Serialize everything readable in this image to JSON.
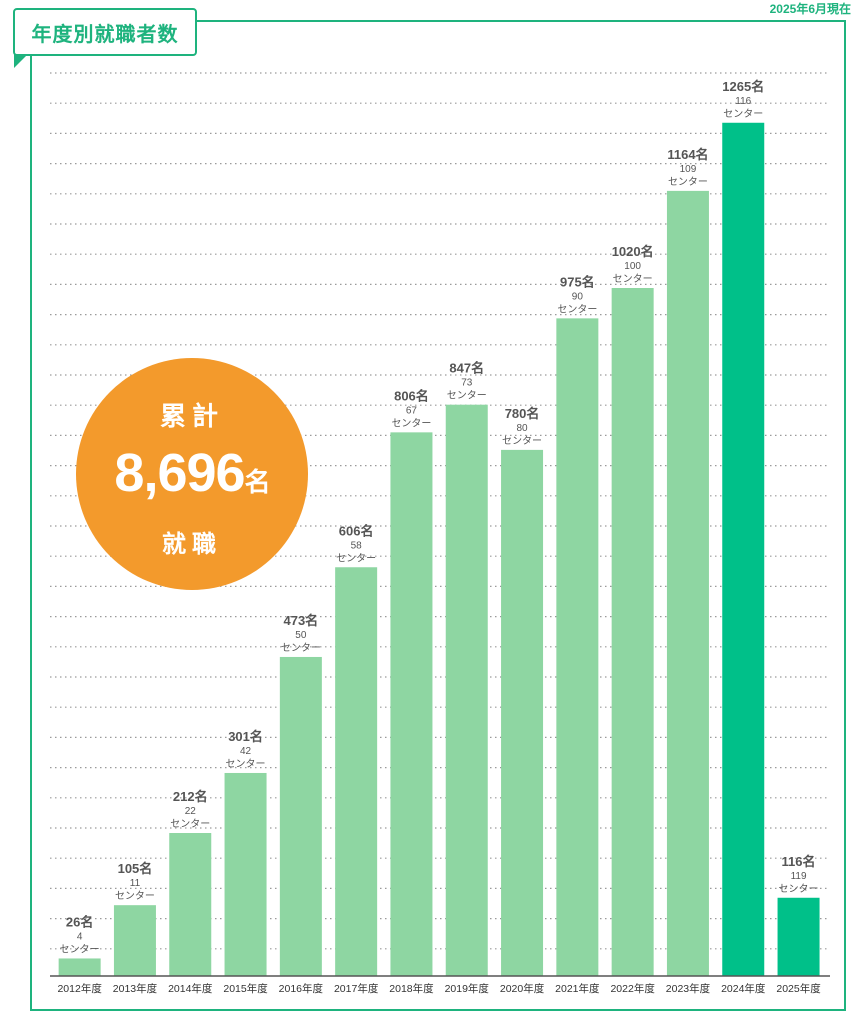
{
  "header": {
    "title": "年度別就職者数",
    "as_of": "2025年6月現在"
  },
  "badge": {
    "line1": "累計",
    "total": "8,696",
    "unit": "名",
    "line3": "就職"
  },
  "colors": {
    "frame": "#1eb37e",
    "bar_normal": "#8ed6a2",
    "bar_highlight": "#00c089",
    "badge": "#f39a2c"
  },
  "chart_data": {
    "type": "bar",
    "categories": [
      "2012年度",
      "2013年度",
      "2014年度",
      "2015年度",
      "2016年度",
      "2017年度",
      "2018年度",
      "2019年度",
      "2020年度",
      "2021年度",
      "2022年度",
      "2023年度",
      "2024年度",
      "2025年度"
    ],
    "values": [
      26,
      105,
      212,
      301,
      473,
      606,
      806,
      847,
      780,
      975,
      1020,
      1164,
      1265,
      116
    ],
    "value_labels": [
      "26名",
      "105名",
      "212名",
      "301名",
      "473名",
      "606名",
      "806名",
      "847名",
      "780名",
      "975名",
      "1020名",
      "1164名",
      "1265名",
      "116名"
    ],
    "centers": [
      "4",
      "11",
      "22",
      "42",
      "50",
      "58",
      "67",
      "73",
      "80",
      "90",
      "100",
      "109",
      "116",
      "119"
    ],
    "center_unit": "センター",
    "highlight": [
      "2024年度",
      "2025年度"
    ],
    "ylim": [
      0,
      1300
    ],
    "grid": "dotted horizontal"
  }
}
